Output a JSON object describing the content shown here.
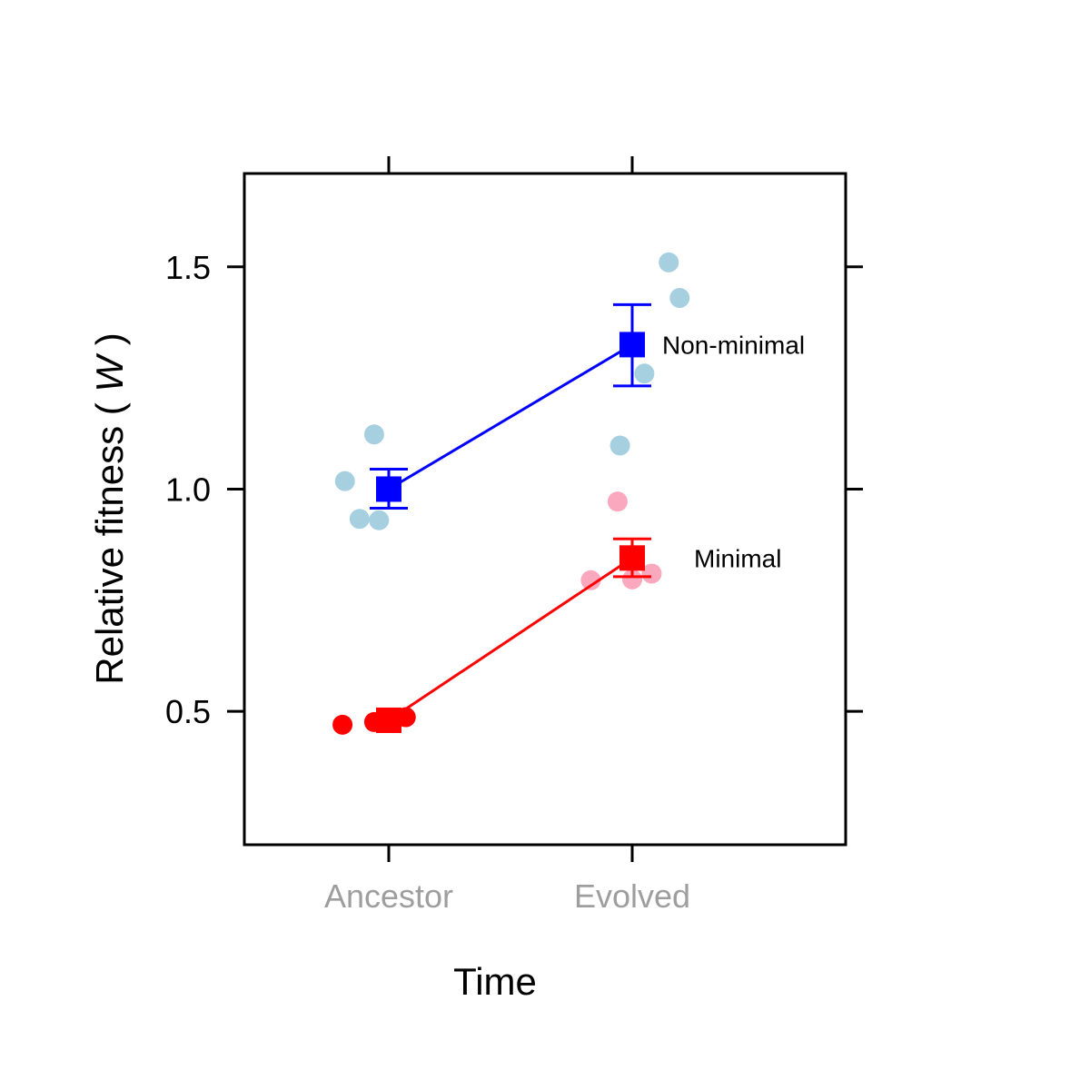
{
  "chart_data": {
    "type": "scatter",
    "xlabel": "Time",
    "ylabel": {
      "prefix": "Relative fitness ( ",
      "italic": "W",
      "suffix": " )"
    },
    "categories": [
      "Ancestor",
      "Evolved"
    ],
    "ylim": [
      0.2,
      1.71
    ],
    "yticks": [
      "0.5",
      "1.0",
      "1.5"
    ],
    "ytick_values": [
      0.5,
      1.0,
      1.5
    ],
    "grid": false,
    "legend": "direct labels",
    "series": [
      {
        "name": "Non-minimal",
        "line_color": "#0000ff",
        "point_color": "#a6d0e0",
        "means": [
          1.0,
          1.325
        ],
        "error_low": [
          0.957,
          1.232
        ],
        "error_high": [
          1.045,
          1.415
        ],
        "points": [
          {
            "x": "Ancestor",
            "offset": -0.18,
            "y": 1.018
          },
          {
            "x": "Ancestor",
            "offset": -0.12,
            "y": 0.933
          },
          {
            "x": "Ancestor",
            "offset": -0.04,
            "y": 0.93
          },
          {
            "x": "Ancestor",
            "offset": -0.06,
            "y": 1.123
          },
          {
            "x": "Evolved",
            "offset": -0.05,
            "y": 1.098
          },
          {
            "x": "Evolved",
            "offset": 0.05,
            "y": 1.26
          },
          {
            "x": "Evolved",
            "offset": 0.15,
            "y": 1.51
          },
          {
            "x": "Evolved",
            "offset": 0.195,
            "y": 1.43
          }
        ]
      },
      {
        "name": "Minimal",
        "line_color": "#ff0000",
        "point_color": "#f9a8bd",
        "ancestor_point_color": "#ff0000",
        "means": [
          0.48,
          0.845
        ],
        "error_low": [
          0.47,
          0.803
        ],
        "error_high": [
          0.49,
          0.888
        ],
        "points": [
          {
            "x": "Ancestor",
            "offset": -0.19,
            "y": 0.47
          },
          {
            "x": "Ancestor",
            "offset": -0.06,
            "y": 0.476
          },
          {
            "x": "Ancestor",
            "offset": 0.0,
            "y": 0.48
          },
          {
            "x": "Ancestor",
            "offset": 0.07,
            "y": 0.487
          },
          {
            "x": "Evolved",
            "offset": -0.17,
            "y": 0.795
          },
          {
            "x": "Evolved",
            "offset": -0.06,
            "y": 0.972
          },
          {
            "x": "Evolved",
            "offset": 0.0,
            "y": 0.797
          },
          {
            "x": "Evolved",
            "offset": 0.08,
            "y": 0.81
          }
        ]
      }
    ]
  }
}
